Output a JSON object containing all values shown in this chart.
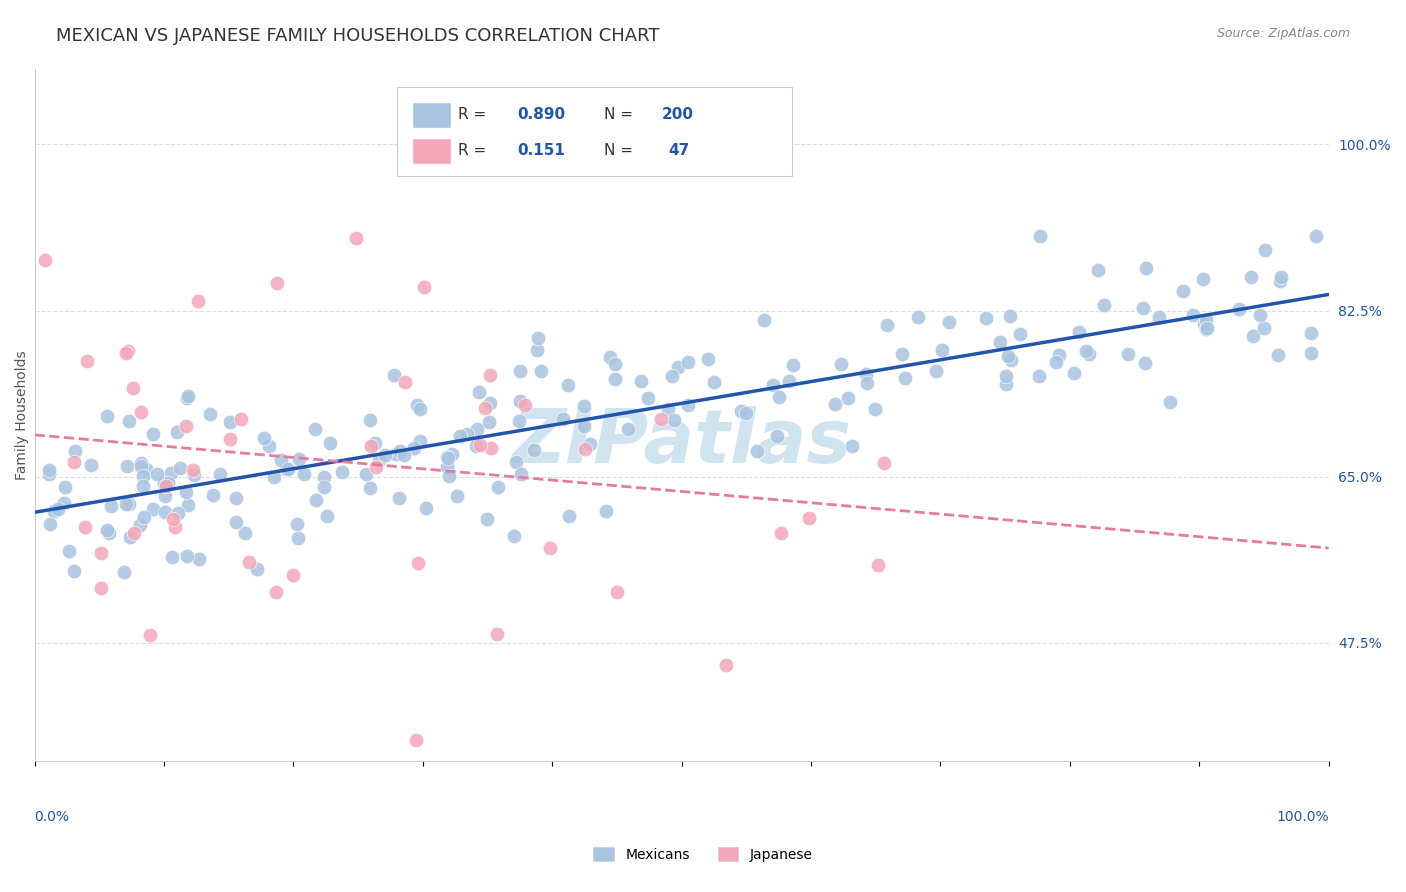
{
  "title": "MEXICAN VS JAPANESE FAMILY HOUSEHOLDS CORRELATION CHART",
  "source": "Source: ZipAtlas.com",
  "ylabel": "Family Households",
  "legend_labels": [
    "Mexicans",
    "Japanese"
  ],
  "mexican_color": "#a8c4e0",
  "japanese_color": "#f4a7b9",
  "mexican_line_color": "#2255aa",
  "japanese_line_color": "#e87a9f",
  "R_mexican": 0.89,
  "N_mexican": 200,
  "R_japanese": 0.151,
  "N_japanese": 47,
  "ytick_labels": [
    "47.5%",
    "65.0%",
    "82.5%",
    "100.0%"
  ],
  "ytick_values": [
    0.475,
    0.65,
    0.825,
    1.0
  ],
  "xlim": [
    0.0,
    1.0
  ],
  "ylim": [
    0.35,
    1.08
  ],
  "background_color": "#ffffff",
  "watermark_text": "ZIPatlas",
  "watermark_color": "#d0e4f0",
  "grid_color": "#dddddd",
  "title_color": "#333333",
  "axis_label_color": "#2255aa",
  "title_fontsize": 13,
  "source_fontsize": 9,
  "ylabel_fontsize": 10,
  "tick_fontsize": 10,
  "legend_fontsize": 10,
  "annotation_fontsize": 11
}
